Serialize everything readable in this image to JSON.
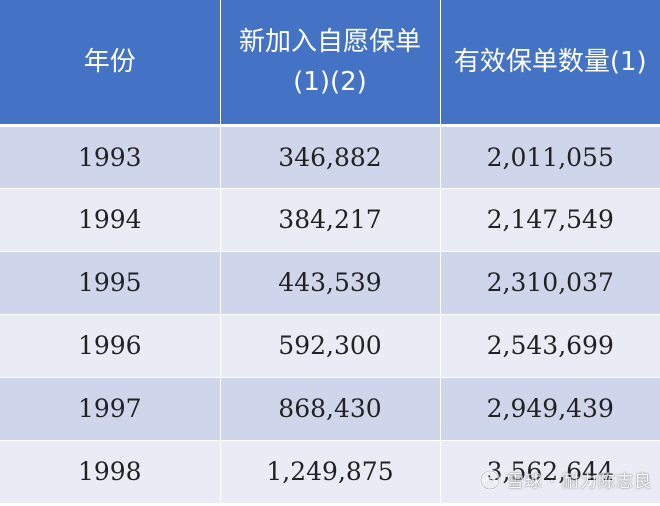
{
  "table": {
    "headers": [
      "年份",
      "新加入自愿保单(1)(2)",
      "有效保单数量(1)"
    ],
    "rows": [
      {
        "year": "1993",
        "new_policies": "346,882",
        "active_policies": "2,011,055"
      },
      {
        "year": "1994",
        "new_policies": "384,217",
        "active_policies": "2,147,549"
      },
      {
        "year": "1995",
        "new_policies": "443,539",
        "active_policies": "2,310,037"
      },
      {
        "year": "1996",
        "new_policies": "592,300",
        "active_policies": "2,543,699"
      },
      {
        "year": "1997",
        "new_policies": "868,430",
        "active_policies": "2,949,439"
      },
      {
        "year": "1998",
        "new_policies": "1,249,875",
        "active_policies": "3,562,644"
      }
    ]
  },
  "watermark": {
    "text": "雪球 · 耐力陈志良",
    "icon": "snowball-logo-icon"
  },
  "colors": {
    "header_bg": "#4472c4",
    "header_text": "#ffffff",
    "row_odd_bg": "#cfd5ea",
    "row_even_bg": "#e9ebf5"
  }
}
